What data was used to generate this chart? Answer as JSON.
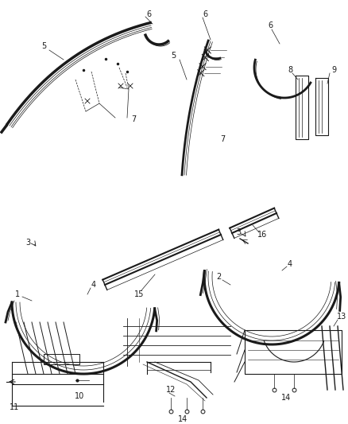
{
  "bg_color": "#ffffff",
  "line_color": "#1a1a1a",
  "label_color": "#1a1a1a",
  "label_fontsize": 7.0,
  "fig_w": 4.38,
  "fig_h": 5.33,
  "dpi": 100
}
